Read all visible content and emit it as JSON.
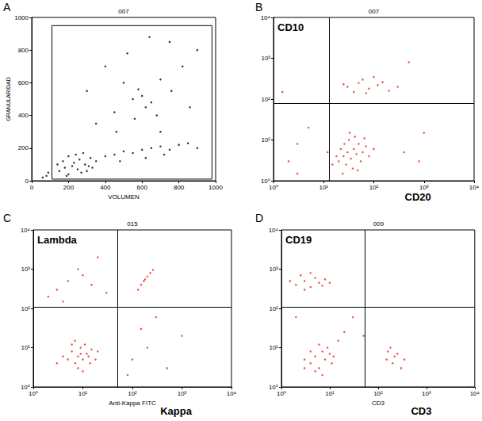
{
  "chart_data": [
    {
      "type": "scatter",
      "panel": "A",
      "title": "007",
      "xlabel": "VOLUMEN",
      "ylabel": "GRANULARIDAD",
      "xlim": [
        0,
        1000
      ],
      "ylim": [
        0,
        1000
      ],
      "xticks": [
        0,
        200,
        400,
        600,
        800,
        1000
      ],
      "yticks": [
        0,
        200,
        400,
        600,
        800,
        1000
      ],
      "grid": false,
      "color": "#000000",
      "gate": {
        "x": [
          110,
          980
        ],
        "y": [
          10,
          950
        ]
      },
      "x": [
        150,
        180,
        200,
        220,
        250,
        170,
        230,
        260,
        290,
        300,
        320,
        200,
        140,
        270,
        310,
        350,
        240,
        190,
        280,
        330,
        400,
        450,
        500,
        550,
        600,
        650,
        700,
        750,
        800,
        850,
        900,
        480,
        620,
        720,
        550,
        600,
        650,
        580,
        620,
        500,
        700,
        450,
        680,
        760,
        820,
        400,
        350,
        900,
        520,
        640,
        750,
        300,
        860,
        460,
        700,
        560,
        60,
        90,
        80
      ],
      "y": [
        60,
        80,
        40,
        90,
        70,
        120,
        110,
        130,
        100,
        60,
        140,
        150,
        100,
        50,
        90,
        120,
        160,
        30,
        170,
        80,
        150,
        160,
        180,
        170,
        190,
        200,
        210,
        190,
        220,
        230,
        200,
        120,
        140,
        160,
        500,
        520,
        480,
        560,
        450,
        600,
        620,
        420,
        400,
        550,
        700,
        700,
        350,
        800,
        780,
        880,
        850,
        550,
        450,
        300,
        300,
        380,
        20,
        50,
        30
      ]
    },
    {
      "type": "scatter",
      "panel": "B",
      "title": "007",
      "xlabel": "CD20",
      "annotation": "CD10",
      "log": true,
      "xlim": [
        1,
        10000
      ],
      "ylim": [
        1,
        10000
      ],
      "xticks": [
        {
          "value": 1,
          "label": "10⁰"
        },
        {
          "value": 10,
          "label": "10¹"
        },
        {
          "value": 100,
          "label": "10²"
        },
        {
          "value": 1000,
          "label": "10³"
        },
        {
          "value": 10000,
          "label": "10⁴"
        }
      ],
      "yticks": [
        {
          "value": 1,
          "label": "10⁰"
        },
        {
          "value": 10,
          "label": "10¹"
        },
        {
          "value": 100,
          "label": "10²"
        },
        {
          "value": 1000,
          "label": "10³"
        },
        {
          "value": 10000,
          "label": "10⁴"
        }
      ],
      "grid": false,
      "color": "#e8251f",
      "quadrant": {
        "x": 13,
        "y": 80
      },
      "x": [
        20,
        25,
        30,
        35,
        40,
        28,
        45,
        50,
        22,
        32,
        60,
        18,
        38,
        55,
        70,
        26,
        42,
        15,
        80,
        33,
        48,
        65,
        24,
        100,
        12,
        30,
        50,
        80,
        120,
        200,
        60,
        40,
        100,
        150,
        300,
        25,
        70,
        2,
        3,
        5,
        400,
        800,
        1000,
        1.5,
        500,
        3
      ],
      "y": [
        3,
        4,
        5,
        3.5,
        6,
        2.5,
        4.5,
        8,
        6,
        10,
        5,
        4,
        2,
        3,
        7,
        8,
        12,
        2.5,
        4,
        15,
        1.8,
        11,
        1.5,
        6,
        5,
        200,
        250,
        180,
        220,
        160,
        300,
        150,
        350,
        260,
        200,
        230,
        140,
        3,
        8,
        20,
        5,
        3,
        15,
        150,
        800,
        1.5
      ]
    },
    {
      "type": "scatter",
      "panel": "C",
      "title": "015",
      "xlabel": "Kappa",
      "xlabel_small": "Anti-Kappa FITC",
      "annotation": "Lambda",
      "log": true,
      "xlim": [
        1,
        10000
      ],
      "ylim": [
        1,
        10000
      ],
      "xticks": [
        {
          "value": 1,
          "label": "10⁰"
        },
        {
          "value": 10,
          "label": "10¹"
        },
        {
          "value": 100,
          "label": "10²"
        },
        {
          "value": 1000,
          "label": "10³"
        },
        {
          "value": 10000,
          "label": "10⁴"
        }
      ],
      "yticks": [
        {
          "value": 1,
          "label": "10⁰"
        },
        {
          "value": 10,
          "label": "10¹"
        },
        {
          "value": 100,
          "label": "10²"
        },
        {
          "value": 1000,
          "label": "10³"
        },
        {
          "value": 10000,
          "label": "10⁴"
        }
      ],
      "grid": false,
      "color": "#e8251f",
      "quadrant": {
        "x": 50,
        "y": 110
      },
      "x": [
        8,
        10,
        6,
        12,
        7,
        9,
        5,
        14,
        11,
        4,
        15,
        8,
        6,
        13,
        10,
        18,
        3,
        7,
        9,
        20,
        130,
        150,
        170,
        200,
        230,
        260,
        180,
        3,
        5,
        8,
        15,
        2,
        20,
        10,
        30,
        4,
        100,
        200,
        500,
        1000,
        150,
        300,
        80
      ],
      "y": [
        6,
        5,
        8,
        7,
        4,
        10,
        5,
        4,
        12,
        6,
        9,
        3,
        12,
        6,
        2.5,
        5,
        4,
        15,
        7,
        8,
        300,
        400,
        500,
        650,
        800,
        950,
        550,
        300,
        500,
        1000,
        400,
        200,
        2000,
        700,
        250,
        150,
        5,
        10,
        3,
        20,
        30,
        60,
        2
      ]
    },
    {
      "type": "scatter",
      "panel": "D",
      "title": "009",
      "xlabel": "CD3",
      "xlabel_small": "CD3",
      "annotation": "CD19",
      "log": true,
      "xlim": [
        1,
        10000
      ],
      "ylim": [
        1,
        10000
      ],
      "xticks": [
        {
          "value": 1,
          "label": "10⁰"
        },
        {
          "value": 10,
          "label": "10¹"
        },
        {
          "value": 100,
          "label": "10²"
        },
        {
          "value": 1000,
          "label": "10³"
        },
        {
          "value": 10000,
          "label": "10⁴"
        }
      ],
      "yticks": [
        {
          "value": 1,
          "label": "10⁰"
        },
        {
          "value": 10,
          "label": "10¹"
        },
        {
          "value": 100,
          "label": "10²"
        },
        {
          "value": 1000,
          "label": "10³"
        },
        {
          "value": 10000,
          "label": "10⁴"
        }
      ],
      "grid": false,
      "color": "#e8251f",
      "quadrant": {
        "x": 54,
        "y": 110
      },
      "x": [
        2,
        3,
        4,
        5,
        6,
        3,
        8,
        2.5,
        4,
        7,
        1.5,
        10,
        4,
        5,
        6,
        7,
        8,
        3,
        9,
        5,
        10,
        6,
        4,
        12,
        15,
        20,
        7,
        3,
        11,
        150,
        200,
        250,
        180,
        300,
        220,
        160,
        350,
        30,
        2,
        50
      ],
      "y": [
        400,
        500,
        350,
        600,
        450,
        300,
        550,
        700,
        800,
        380,
        500,
        450,
        4,
        6,
        3,
        8,
        5,
        5,
        10,
        2.5,
        7,
        12,
        8,
        6,
        15,
        25,
        2,
        3,
        4,
        5,
        4,
        7,
        10,
        3,
        6,
        8,
        5,
        60,
        60,
        20
      ]
    }
  ]
}
